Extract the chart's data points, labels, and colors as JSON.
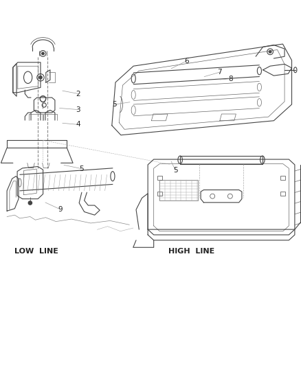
{
  "bg_color": "#ffffff",
  "line_color": "#444444",
  "label_color": "#222222",
  "fig_width": 4.39,
  "fig_height": 5.33,
  "dpi": 100,
  "callouts": {
    "tl_2": [
      0.258,
      0.798,
      0.205,
      0.808
    ],
    "tl_3": [
      0.258,
      0.745,
      0.195,
      0.75
    ],
    "tl_4": [
      0.258,
      0.695,
      0.205,
      0.7
    ],
    "tr_6": [
      0.62,
      0.908,
      0.568,
      0.882
    ],
    "tr_7": [
      0.73,
      0.87,
      0.678,
      0.855
    ],
    "tr_8": [
      0.765,
      0.848,
      0.73,
      0.845
    ],
    "tr_5": [
      0.378,
      0.762,
      0.43,
      0.77
    ],
    "bl_5": [
      0.268,
      0.548,
      0.21,
      0.56
    ],
    "bl_9": [
      0.198,
      0.412,
      0.148,
      0.435
    ],
    "br_5": [
      0.582,
      0.542,
      0.568,
      0.572
    ]
  },
  "labels": {
    "low_line": [
      0.118,
      0.273
    ],
    "high_line": [
      0.635,
      0.273
    ]
  }
}
